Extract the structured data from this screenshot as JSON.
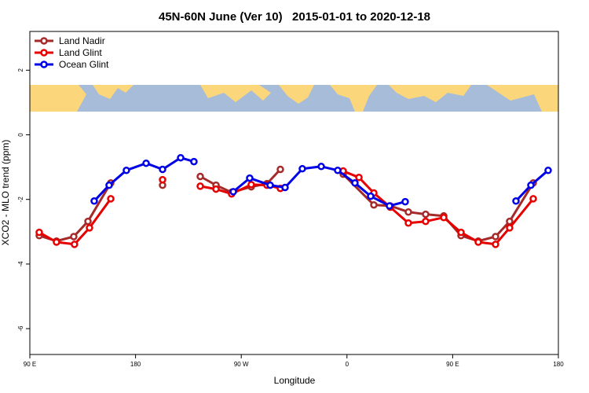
{
  "chart_data": {
    "type": "line",
    "title": "45N-60N June (Ver 10)   2015-01-01 to 2020-12-18",
    "x_label": "Longitude",
    "y_label": "XCO2 - MLO trend (ppm)",
    "xlim": [
      90,
      540
    ],
    "ylim": [
      -6.8,
      3.2
    ],
    "xticks": [
      {
        "value": 90,
        "label": "90 E"
      },
      180,
      {
        "value": 270,
        "label": "90 W"
      },
      {
        "value": 360,
        "label": "0"
      },
      {
        "value": 450,
        "label": "90 E"
      },
      {
        "value": 540,
        "label": "180"
      }
    ],
    "yticks": [
      -6,
      -4,
      -2,
      0,
      2
    ],
    "legend": "top-left",
    "series": [
      {
        "name": "Land Nadir",
        "color": "#a52a2a",
        "x": [
          98,
          112.7,
          127.4,
          139.5,
          158.9,
          null,
          203,
          null,
          235.1,
          248.5,
          261.8,
          278.5,
          291.9,
          303.3,
          null,
          356.8,
          382.9,
          396.9,
          412.3,
          427,
          442.4,
          457.1,
          471.8,
          486.5,
          498.5,
          518.6
        ],
        "values": [
          -3.12,
          -3.29,
          -3.15,
          -2.68,
          -1.49,
          null,
          -1.56,
          null,
          -1.29,
          -1.56,
          -1.78,
          -1.61,
          -1.51,
          -1.07,
          null,
          -1.22,
          -2.17,
          -2.2,
          -2.39,
          -2.46,
          -2.51,
          -3.12,
          -3.29,
          -3.15,
          -2.68,
          -1.49
        ]
      },
      {
        "name": "Land Glint",
        "color": "#e60000",
        "x": [
          98,
          112.7,
          128,
          140.8,
          158.9,
          null,
          203,
          null,
          235.1,
          248.5,
          261.8,
          278.5,
          291.9,
          303.3,
          null,
          356.8,
          370.2,
          382.9,
          396.9,
          412.3,
          427,
          442.4,
          457.1,
          471.8,
          486.5,
          498.5,
          518.6
        ],
        "values": [
          -3.02,
          -3.32,
          -3.39,
          -2.88,
          -1.98,
          null,
          -1.39,
          null,
          -1.59,
          -1.68,
          -1.83,
          -1.54,
          -1.56,
          -1.66,
          null,
          -1.12,
          -1.32,
          -1.8,
          -2.24,
          -2.73,
          -2.68,
          -2.56,
          -3.02,
          -3.32,
          -3.39,
          -2.88,
          -1.98
        ]
      },
      {
        "name": "Ocean Glint",
        "color": "#0000e6",
        "x": [
          144.8,
          157.5,
          172.2,
          189,
          203,
          218.4,
          229.7,
          null,
          263.2,
          277.2,
          294.6,
          307.3,
          322,
          338.1,
          352.1,
          366.8,
          380.2,
          396.2,
          409.6,
          null,
          503.9,
          516.6,
          531.3
        ],
        "values": [
          -2.05,
          -1.56,
          -1.1,
          -0.88,
          -1.07,
          -0.71,
          -0.83,
          null,
          -1.76,
          -1.34,
          -1.56,
          -1.63,
          -1.05,
          -0.98,
          -1.1,
          -1.49,
          -1.9,
          -2.2,
          -2.07,
          null,
          -2.05,
          -1.56,
          -1.1
        ]
      }
    ]
  }
}
